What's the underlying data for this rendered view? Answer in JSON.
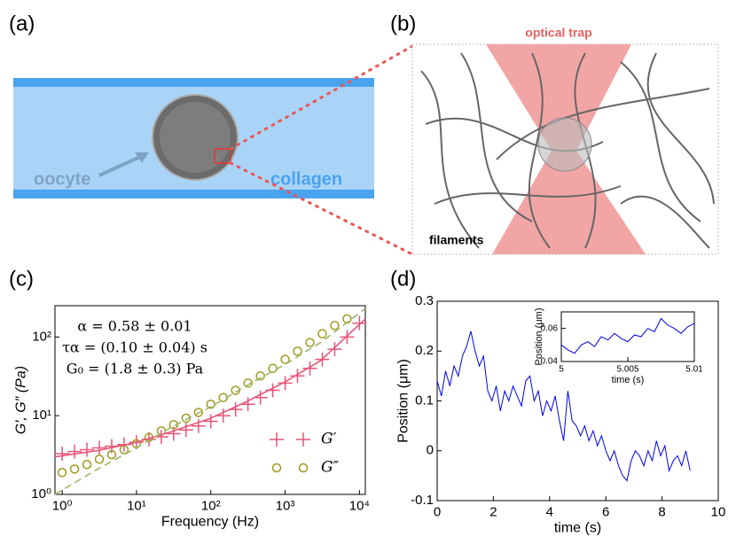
{
  "panels": {
    "a": "(a)",
    "b": "(b)",
    "c": "(c)",
    "d": "(d)"
  },
  "diagram_a": {
    "oocyte": "oocyte",
    "collagen": "collagen"
  },
  "diagram_b": {
    "trap": "optical trap",
    "filaments": "filaments"
  },
  "chart_data": [
    {
      "type": "scatter",
      "x_label": "Frequency (Hz)",
      "y_label": "G′, G″ (Pa)",
      "log_x": true,
      "log_y": true,
      "xlim": [
        0.8,
        12000
      ],
      "ylim": [
        1,
        250
      ],
      "xticks": [
        {
          "value": 1,
          "label": "10⁰"
        },
        {
          "value": 10,
          "label": "10¹"
        },
        {
          "value": 100,
          "label": "10²"
        },
        {
          "value": 1000,
          "label": "10³"
        },
        {
          "value": 10000,
          "label": "10⁴"
        }
      ],
      "yticks": [
        {
          "value": 1,
          "label": "10⁰"
        },
        {
          "value": 10,
          "label": "10¹"
        },
        {
          "value": 100,
          "label": "10²"
        }
      ],
      "annotations": [
        "α = 0.58 ± 0.01",
        "τα = (0.10 ± 0.04) s",
        "G₀ = (1.8 ± 0.3) Pa"
      ],
      "legend": "lower right",
      "series": [
        {
          "name": "G′",
          "color": "#e8557a",
          "marker": "plus",
          "x": [
            1,
            1.468,
            2.154,
            3.162,
            4.642,
            6.813,
            10,
            14.68,
            21.54,
            31.62,
            46.42,
            68.13,
            100,
            146.8,
            215.4,
            316.2,
            464.2,
            681.3,
            1000,
            1468,
            2154,
            3162,
            4642,
            6813,
            10000
          ],
          "values": [
            3.3,
            3.5,
            3.7,
            3.9,
            4.1,
            4.3,
            4.6,
            5.0,
            5.4,
            5.9,
            6.6,
            7.4,
            8.5,
            10,
            12,
            14,
            17,
            21,
            26,
            32,
            40,
            52,
            70,
            100,
            150
          ]
        },
        {
          "name": "G″",
          "color": "#a09a1e",
          "marker": "circle",
          "x": [
            1,
            1.468,
            2.154,
            3.162,
            4.642,
            6.813,
            10,
            14.68,
            21.54,
            31.62,
            46.42,
            68.13,
            100,
            146.8,
            215.4,
            316.2,
            464.2,
            681.3,
            1000,
            1468,
            2154,
            3162,
            4642,
            6813
          ],
          "values": [
            1.9,
            2.1,
            2.4,
            2.8,
            3.2,
            3.7,
            4.4,
            5.3,
            6.4,
            7.7,
            9.3,
            11,
            14,
            17,
            21,
            26,
            32,
            40,
            52,
            66,
            85,
            110,
            140,
            170
          ]
        },
        {
          "color": "#e8557a",
          "line": "solid",
          "x": [
            0.8,
            3,
            10,
            30,
            100,
            300,
            1000,
            3000,
            12000
          ],
          "values": [
            3.0,
            3.6,
            4.6,
            6.3,
            9.3,
            15,
            27,
            50,
            170
          ]
        },
        {
          "color": "#9cb86a",
          "line": "dashed",
          "x": [
            0.8,
            3,
            10,
            30,
            100,
            300,
            1000,
            3000,
            12000
          ],
          "values": [
            1.0,
            2.1,
            3.9,
            7.2,
            13,
            24,
            45,
            85,
            230
          ]
        }
      ]
    },
    {
      "type": "line",
      "x_label": "time (s)",
      "y_label": "Position (μm)",
      "xlim": [
        0,
        10
      ],
      "ylim": [
        -0.1,
        0.3
      ],
      "xticks": [
        0,
        2,
        4,
        6,
        8,
        10
      ],
      "yticks": [
        -0.1,
        0,
        0.1,
        0.2,
        0.3
      ],
      "series": [
        {
          "color": "#0000ee",
          "x": [
            0,
            0.15,
            0.3,
            0.45,
            0.6,
            0.75,
            0.9,
            1.05,
            1.2,
            1.35,
            1.5,
            1.65,
            1.8,
            1.95,
            2.1,
            2.25,
            2.4,
            2.55,
            2.7,
            2.85,
            3,
            3.15,
            3.3,
            3.45,
            3.6,
            3.75,
            3.9,
            4.05,
            4.2,
            4.35,
            4.5,
            4.65,
            4.8,
            4.95,
            5.1,
            5.25,
            5.4,
            5.55,
            5.7,
            5.85,
            6,
            6.15,
            6.3,
            6.45,
            6.6,
            6.75,
            6.9,
            7.05,
            7.2,
            7.35,
            7.5,
            7.65,
            7.8,
            7.95,
            8.1,
            8.25,
            8.4,
            8.55,
            8.7,
            8.85,
            9
          ],
          "values": [
            0.14,
            0.11,
            0.16,
            0.13,
            0.17,
            0.15,
            0.19,
            0.21,
            0.24,
            0.2,
            0.17,
            0.19,
            0.12,
            0.1,
            0.13,
            0.08,
            0.12,
            0.1,
            0.13,
            0.11,
            0.09,
            0.14,
            0.15,
            0.1,
            0.12,
            0.07,
            0.1,
            0.08,
            0.11,
            0.06,
            0.02,
            0.12,
            0.06,
            0.05,
            0.03,
            0.05,
            0.02,
            0.04,
            0.01,
            0.03,
            0.0,
            -0.02,
            0.0,
            -0.03,
            -0.05,
            -0.06,
            -0.02,
            0.0,
            -0.01,
            -0.03,
            0.0,
            -0.02,
            0.02,
            -0.01,
            0.01,
            -0.04,
            -0.02,
            -0.01,
            -0.03,
            0.0,
            -0.04
          ]
        }
      ]
    },
    {
      "type": "line",
      "x_label": "time (s)",
      "y_label": "Position (μm)",
      "xlim": [
        5,
        5.01
      ],
      "ylim": [
        0.04,
        0.07
      ],
      "xticks": [
        5,
        5.005,
        5.01
      ],
      "yticks": [
        0.04,
        0.06
      ],
      "series": [
        {
          "color": "#0000ee",
          "x": [
            5,
            5.0005,
            5.001,
            5.0015,
            5.002,
            5.0025,
            5.003,
            5.0035,
            5.004,
            5.0045,
            5.005,
            5.0055,
            5.006,
            5.0065,
            5.007,
            5.0075,
            5.008,
            5.0085,
            5.009,
            5.0095,
            5.01
          ],
          "values": [
            0.05,
            0.047,
            0.045,
            0.05,
            0.052,
            0.049,
            0.055,
            0.053,
            0.057,
            0.054,
            0.052,
            0.056,
            0.055,
            0.06,
            0.058,
            0.066,
            0.062,
            0.06,
            0.057,
            0.061,
            0.063
          ]
        }
      ]
    }
  ]
}
